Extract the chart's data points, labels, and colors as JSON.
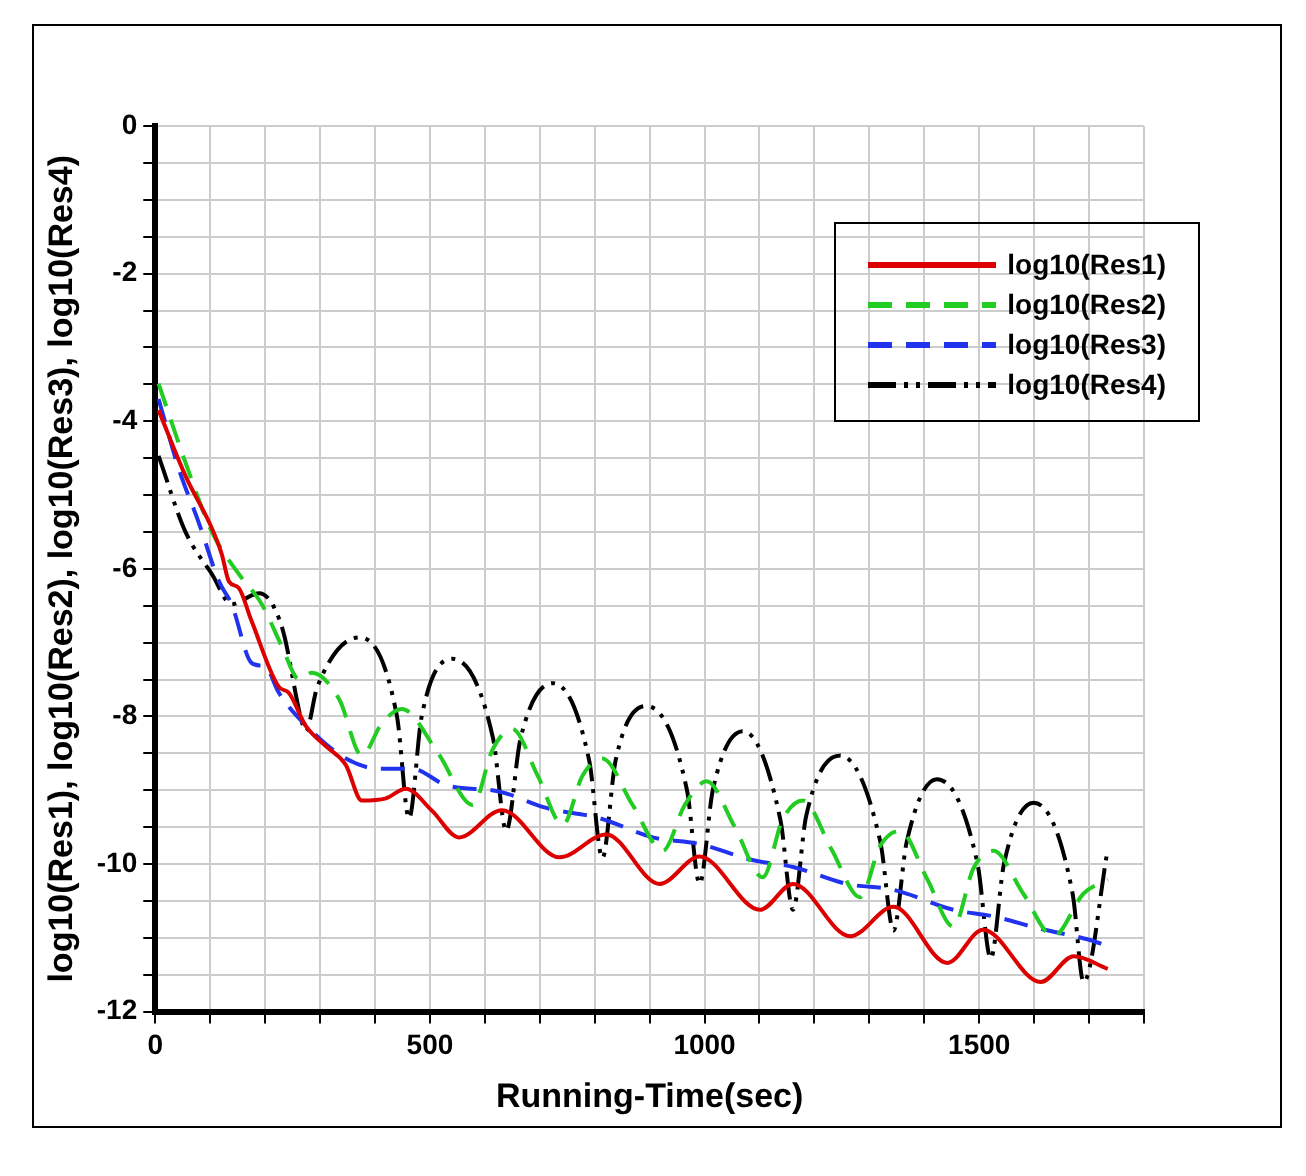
{
  "chart_data": {
    "type": "line",
    "xlabel": "Running-Time(sec)",
    "ylabel": "log10(Res1), log10(Res2), log10(Res3), log10(Res4)",
    "xlim": [
      0,
      1800
    ],
    "ylim": [
      -12,
      0
    ],
    "xticks": [
      0,
      {
        "value": 100,
        "label": null
      },
      {
        "value": 200,
        "label": null
      },
      {
        "value": 300,
        "label": null
      },
      {
        "value": 400,
        "label": null
      },
      500,
      {
        "value": 600,
        "label": null
      },
      {
        "value": 700,
        "label": null
      },
      {
        "value": 800,
        "label": null
      },
      {
        "value": 900,
        "label": null
      },
      1000,
      {
        "value": 1100,
        "label": null
      },
      {
        "value": 1200,
        "label": null
      },
      {
        "value": 1300,
        "label": null
      },
      {
        "value": 1400,
        "label": null
      },
      1500,
      {
        "value": 1600,
        "label": null
      },
      {
        "value": 1700,
        "label": null
      },
      {
        "value": 1800,
        "label": null
      }
    ],
    "yticks": [
      -12,
      {
        "value": -11.5,
        "label": null
      },
      {
        "value": -11,
        "label": null
      },
      {
        "value": -10.5,
        "label": null
      },
      -10,
      {
        "value": -9.5,
        "label": null
      },
      {
        "value": -9,
        "label": null
      },
      {
        "value": -8.5,
        "label": null
      },
      -8,
      {
        "value": -7.5,
        "label": null
      },
      {
        "value": -7,
        "label": null
      },
      {
        "value": -6.5,
        "label": null
      },
      -6,
      {
        "value": -5.5,
        "label": null
      },
      {
        "value": -5,
        "label": null
      },
      {
        "value": -4.5,
        "label": null
      },
      -4,
      {
        "value": -3.5,
        "label": null
      },
      {
        "value": -3,
        "label": null
      },
      {
        "value": -2.5,
        "label": null
      },
      -2,
      {
        "value": -1.5,
        "label": null
      },
      {
        "value": -1,
        "label": null
      },
      {
        "value": -0.5,
        "label": null
      },
      0
    ],
    "grid": true,
    "legend": "top right",
    "marker": "none",
    "series": [
      {
        "name": "log10(Res1)",
        "color": "#dd0000",
        "line_style": "solid",
        "x": [
          6,
          55,
          103,
          121,
          134,
          152,
          175,
          225,
          243,
          274,
          310,
          347,
          376,
          420,
          456,
          504,
          553,
          631,
          736,
          821,
          918,
          991,
          1101,
          1161,
          1265,
          1344,
          1442,
          1507,
          1612,
          1672,
          1734
        ],
        "values": [
          -3.85,
          -4.74,
          -5.45,
          -5.8,
          -6.17,
          -6.26,
          -6.7,
          -7.6,
          -7.68,
          -8.13,
          -8.4,
          -8.66,
          -9.14,
          -9.11,
          -8.98,
          -9.28,
          -9.64,
          -9.27,
          -9.91,
          -9.6,
          -10.27,
          -9.9,
          -10.62,
          -10.27,
          -10.98,
          -10.58,
          -11.34,
          -10.89,
          -11.6,
          -11.25,
          -11.42
        ]
      },
      {
        "name": "log10(Res2)",
        "color": "#22cc22",
        "line_style": "dashed",
        "x": [
          6,
          55,
          103,
          152,
          194,
          231,
          262,
          285,
          335,
          376,
          412,
          449,
          515,
          578,
          614,
          650,
          696,
          742,
          778,
          814,
          869,
          924,
          964,
          1004,
          1055,
          1106,
          1142,
          1179,
          1231,
          1283,
          1320,
          1356,
          1405,
          1453,
          1490,
          1526,
          1580,
          1635,
          1690,
          1734
        ],
        "values": [
          -3.49,
          -4.56,
          -5.5,
          -6.07,
          -6.48,
          -7.06,
          -7.5,
          -7.41,
          -7.77,
          -8.53,
          -8.1,
          -7.9,
          -8.5,
          -9.2,
          -8.45,
          -8.17,
          -8.8,
          -9.47,
          -8.8,
          -8.57,
          -9.2,
          -9.82,
          -9.2,
          -8.88,
          -9.5,
          -10.18,
          -9.4,
          -9.14,
          -9.8,
          -10.45,
          -9.75,
          -9.55,
          -10.2,
          -10.85,
          -10.05,
          -9.82,
          -10.4,
          -10.98,
          -10.4,
          -10.21
        ]
      },
      {
        "name": "log10(Res3)",
        "color": "#2233ee",
        "line_style": "dashed",
        "x": [
          6,
          43,
          79,
          116,
          139,
          176,
          201,
          225,
          285,
          347,
          408,
          468,
          529,
          627,
          712,
          809,
          906,
          991,
          1089,
          1161,
          1259,
          1344,
          1453,
          1526,
          1612,
          1697,
          1734
        ],
        "values": [
          -3.7,
          -4.65,
          -5.37,
          -6.17,
          -6.48,
          -7.28,
          -7.33,
          -7.68,
          -8.2,
          -8.57,
          -8.71,
          -8.71,
          -8.93,
          -9.02,
          -9.24,
          -9.38,
          -9.64,
          -9.73,
          -9.95,
          -10.04,
          -10.27,
          -10.35,
          -10.62,
          -10.71,
          -10.88,
          -11.02,
          -11.11
        ]
      },
      {
        "name": "log10(Res4)",
        "color": "#000000",
        "line_style": "dotted",
        "x": [
          6,
          55,
          103,
          139,
          189,
          231,
          266,
          274,
          295,
          371,
          440,
          462,
          485,
          541,
          615,
          639,
          665,
          724,
          790,
          814,
          838,
          894,
          968,
          991,
          1015,
          1070,
          1138,
          1161,
          1185,
          1247,
          1320,
          1344,
          1368,
          1423,
          1497,
          1521,
          1545,
          1599,
          1670,
          1690,
          1734
        ],
        "values": [
          -4.47,
          -5.5,
          -6.07,
          -6.48,
          -6.33,
          -6.8,
          -8.05,
          -8.2,
          -7.6,
          -6.93,
          -8.0,
          -9.38,
          -8.0,
          -7.22,
          -8.3,
          -9.55,
          -8.3,
          -7.55,
          -8.6,
          -9.92,
          -8.6,
          -7.86,
          -9.0,
          -10.27,
          -9.0,
          -8.2,
          -9.4,
          -10.62,
          -9.35,
          -8.53,
          -9.7,
          -10.9,
          -9.7,
          -8.85,
          -10.0,
          -11.28,
          -10.0,
          -9.17,
          -10.4,
          -11.6,
          -9.8
        ]
      }
    ]
  }
}
